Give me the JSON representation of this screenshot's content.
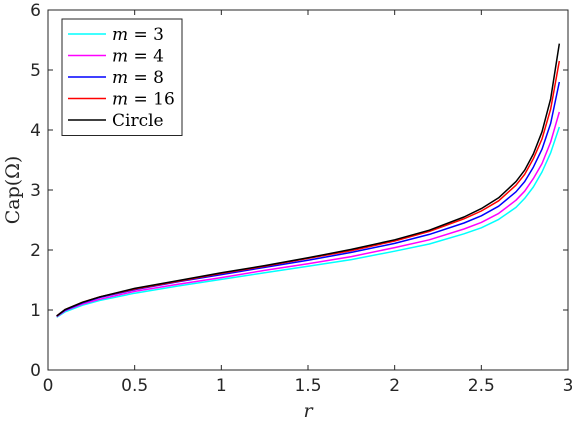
{
  "chart_data": {
    "type": "line",
    "xlabel": "r",
    "ylabel": "Cap(Ω)",
    "xlim": [
      0,
      3
    ],
    "ylim": [
      0,
      6
    ],
    "xticks": [
      "0",
      "0.5",
      "1",
      "1.5",
      "2",
      "2.5",
      "3"
    ],
    "yticks": [
      "0",
      "1",
      "2",
      "3",
      "4",
      "5",
      "6"
    ],
    "grid": false,
    "legend_position": "top-left",
    "x": [
      0.05,
      0.1,
      0.2,
      0.3,
      0.5,
      0.75,
      1.0,
      1.25,
      1.5,
      1.75,
      2.0,
      2.2,
      2.4,
      2.5,
      2.6,
      2.7,
      2.75,
      2.8,
      2.85,
      2.9,
      2.95
    ],
    "series": [
      {
        "name": "m = 3",
        "name_parts": {
          "var": "m",
          "rest": " = 3"
        },
        "color": "#00ffff",
        "values": [
          0.88,
          0.97,
          1.08,
          1.16,
          1.28,
          1.4,
          1.51,
          1.62,
          1.73,
          1.84,
          1.98,
          2.1,
          2.27,
          2.37,
          2.51,
          2.71,
          2.86,
          3.05,
          3.3,
          3.62,
          4.05
        ]
      },
      {
        "name": "m = 4",
        "name_parts": {
          "var": "m",
          "rest": " = 4"
        },
        "color": "#ff00ff",
        "values": [
          0.89,
          0.99,
          1.1,
          1.18,
          1.31,
          1.43,
          1.54,
          1.66,
          1.77,
          1.89,
          2.04,
          2.17,
          2.35,
          2.46,
          2.61,
          2.83,
          2.98,
          3.19,
          3.44,
          3.8,
          4.3
        ]
      },
      {
        "name": "m = 8",
        "name_parts": {
          "var": "m",
          "rest": " = 8"
        },
        "color": "#0000ff",
        "values": [
          0.9,
          1.0,
          1.12,
          1.21,
          1.34,
          1.47,
          1.59,
          1.71,
          1.83,
          1.96,
          2.11,
          2.26,
          2.45,
          2.57,
          2.73,
          2.97,
          3.14,
          3.38,
          3.68,
          4.11,
          4.8
        ]
      },
      {
        "name": "m = 16",
        "name_parts": {
          "var": "m",
          "rest": " = 16"
        },
        "color": "#ff0000",
        "values": [
          0.9,
          1.01,
          1.13,
          1.22,
          1.35,
          1.48,
          1.61,
          1.73,
          1.86,
          1.99,
          2.15,
          2.31,
          2.52,
          2.65,
          2.82,
          3.08,
          3.26,
          3.52,
          3.85,
          4.35,
          5.15
        ]
      },
      {
        "name": "Circle",
        "name_parts": {
          "var": "",
          "rest": "Circle"
        },
        "color": "#000000",
        "values": [
          0.9,
          1.01,
          1.13,
          1.22,
          1.36,
          1.49,
          1.62,
          1.74,
          1.87,
          2.01,
          2.17,
          2.33,
          2.55,
          2.69,
          2.87,
          3.14,
          3.33,
          3.6,
          3.97,
          4.52,
          5.44
        ]
      }
    ]
  }
}
